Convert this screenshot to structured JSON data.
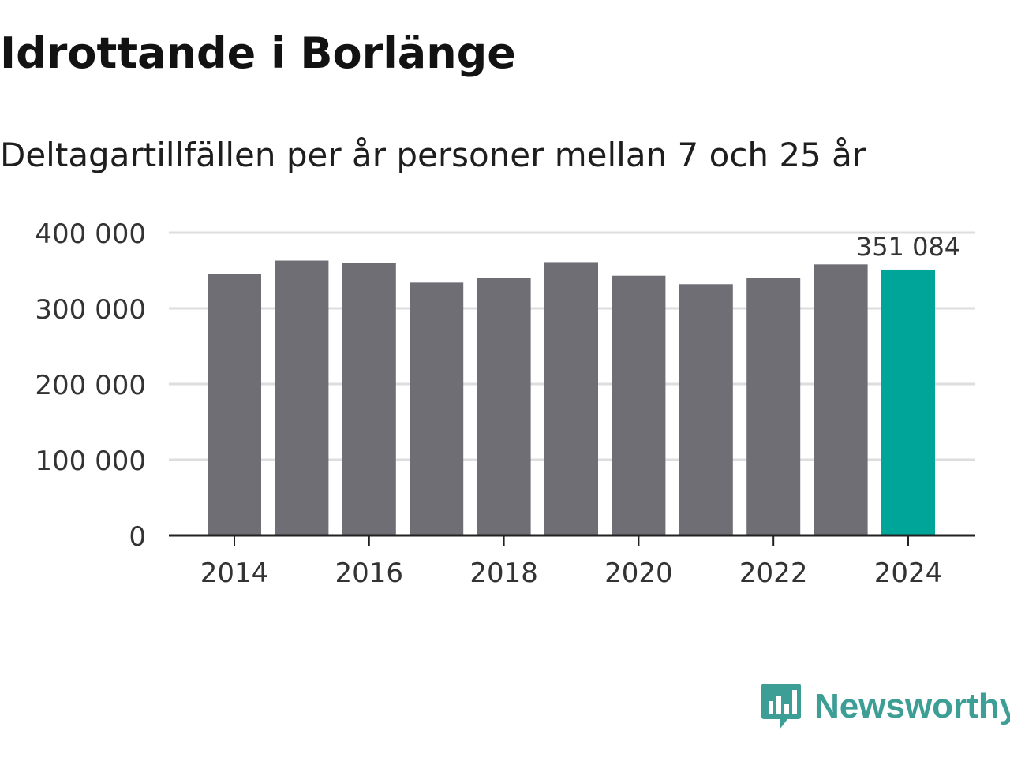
{
  "header": {
    "title": "Idrottande i Borlänge",
    "subtitle": "Deltagartillfällen per år personer mellan 7 och 25 år"
  },
  "chart_data": {
    "type": "bar",
    "title": "Idrottande i Borlänge",
    "subtitle": "Deltagartillfällen per år personer mellan 7 och 25 år",
    "xlabel": "",
    "ylabel": "",
    "categories": [
      "2014",
      "2015",
      "2016",
      "2017",
      "2018",
      "2019",
      "2020",
      "2021",
      "2022",
      "2023",
      "2024"
    ],
    "values": [
      345000,
      363000,
      360000,
      334000,
      340000,
      361000,
      343000,
      332000,
      340000,
      358000,
      351084
    ],
    "ylim": [
      0,
      400000
    ],
    "yticks": [
      0,
      100000,
      200000,
      300000,
      400000
    ],
    "ytick_labels": [
      "0",
      "100 000",
      "200 000",
      "300 000",
      "400 000"
    ],
    "xtick_labels": [
      "2014",
      "2016",
      "2018",
      "2020",
      "2022",
      "2024"
    ],
    "highlight": {
      "category": "2024",
      "label": "351 084"
    },
    "grid": true,
    "colors": {
      "bar": "#6f6e75",
      "highlight": "#00a59a",
      "grid": "#dddddd",
      "axis": "#222222"
    }
  },
  "brand": {
    "name": "Newsworthy",
    "color": "#3d9e95",
    "icon": "newsworthy-logo-icon"
  }
}
